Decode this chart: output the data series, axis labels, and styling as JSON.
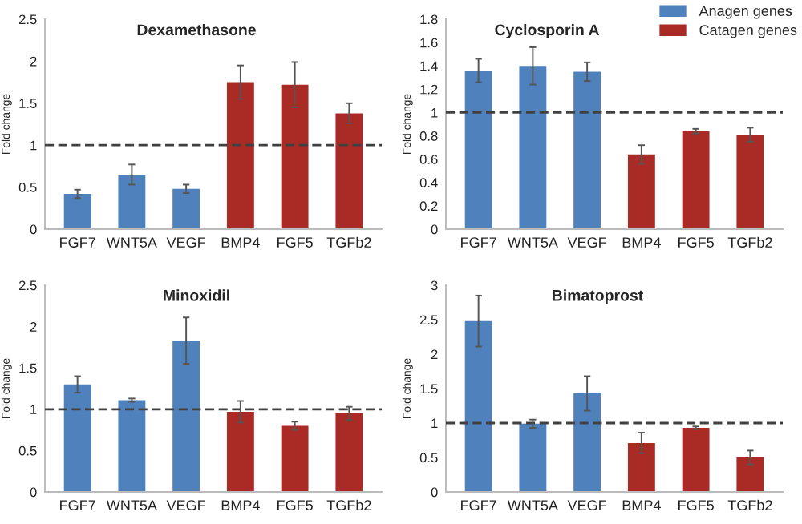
{
  "chart_data": [
    {
      "type": "bar",
      "title": "Dexamethasone",
      "ylabel": "Fold change",
      "stacked": true,
      "categories": [
        "FGF7",
        "WNT5A",
        "VEGF",
        "BMP4",
        "FGF5",
        "TGFb2"
      ],
      "series": [
        {
          "color": "#4f81bd",
          "values": [
            0.42,
            0.65,
            0.48,
            null,
            null,
            null
          ],
          "errors": [
            0.05,
            0.12,
            0.05,
            null,
            null,
            null
          ]
        },
        {
          "color": "#aa2a26",
          "values": [
            null,
            null,
            null,
            1.75,
            1.72,
            1.38
          ],
          "errors": [
            null,
            null,
            null,
            0.2,
            0.27,
            0.12
          ]
        }
      ],
      "ylim": [
        0,
        2.5
      ],
      "yticks": [
        0,
        0.5,
        1,
        1.5,
        2,
        2.5
      ],
      "grid": false,
      "legend": false,
      "ref_lines": [
        {
          "axis": "y",
          "value": 1,
          "line_style": "dashed",
          "color": "#404040"
        }
      ]
    },
    {
      "type": "bar",
      "title": "Cyclosporin A",
      "ylabel": "Fold change",
      "stacked": true,
      "categories": [
        "FGF7",
        "WNT5A",
        "VEGF",
        "BMP4",
        "FGF5",
        "TGFb2"
      ],
      "series": [
        {
          "name": "Anagen genes",
          "color": "#4f81bd",
          "values": [
            1.36,
            1.4,
            1.35,
            null,
            null,
            null
          ],
          "errors": [
            0.1,
            0.16,
            0.08,
            null,
            null,
            null
          ]
        },
        {
          "name": "Catagen genes",
          "color": "#aa2a26",
          "values": [
            null,
            null,
            null,
            0.64,
            0.84,
            0.81
          ],
          "errors": [
            null,
            null,
            null,
            0.08,
            0.02,
            0.06
          ]
        }
      ],
      "ylim": [
        0,
        1.8
      ],
      "yticks": [
        0,
        0.2,
        0.4,
        0.6,
        0.8,
        1,
        1.2,
        1.4,
        1.6,
        1.8
      ],
      "grid": false,
      "legend": "top right",
      "ref_lines": [
        {
          "axis": "y",
          "value": 1,
          "line_style": "dashed",
          "color": "#404040"
        }
      ]
    },
    {
      "type": "bar",
      "title": "Minoxidil",
      "ylabel": "Fold change",
      "stacked": true,
      "categories": [
        "FGF7",
        "WNT5A",
        "VEGF",
        "BMP4",
        "FGF5",
        "TGFb2"
      ],
      "series": [
        {
          "color": "#4f81bd",
          "values": [
            1.3,
            1.11,
            1.83,
            null,
            null,
            null
          ],
          "errors": [
            0.1,
            0.02,
            0.28,
            null,
            null,
            null
          ]
        },
        {
          "color": "#aa2a26",
          "values": [
            null,
            null,
            null,
            0.97,
            0.8,
            0.95
          ],
          "errors": [
            null,
            null,
            null,
            0.13,
            0.05,
            0.08
          ]
        }
      ],
      "ylim": [
        0,
        2.5
      ],
      "yticks": [
        0,
        0.5,
        1,
        1.5,
        2,
        2.5
      ],
      "grid": false,
      "legend": false,
      "ref_lines": [
        {
          "axis": "y",
          "value": 1,
          "line_style": "dashed",
          "color": "#404040"
        }
      ]
    },
    {
      "type": "bar",
      "title": "Bimatoprost",
      "ylabel": "Fold change",
      "stacked": true,
      "categories": [
        "FGF7",
        "WNT5A",
        "VEGF",
        "BMP4",
        "FGF5",
        "TGFb2"
      ],
      "series": [
        {
          "color": "#4f81bd",
          "values": [
            2.48,
            0.99,
            1.43,
            null,
            null,
            null
          ],
          "errors": [
            0.37,
            0.06,
            0.25,
            null,
            null,
            null
          ]
        },
        {
          "color": "#aa2a26",
          "values": [
            null,
            null,
            null,
            0.71,
            0.93,
            0.5
          ],
          "errors": [
            null,
            null,
            null,
            0.15,
            0.02,
            0.1
          ]
        }
      ],
      "ylim": [
        0,
        3
      ],
      "yticks": [
        0,
        0.5,
        1,
        1.5,
        2,
        2.5,
        3
      ],
      "grid": false,
      "legend": false,
      "ref_lines": [
        {
          "axis": "y",
          "value": 1,
          "line_style": "dashed",
          "color": "#404040"
        }
      ]
    }
  ]
}
